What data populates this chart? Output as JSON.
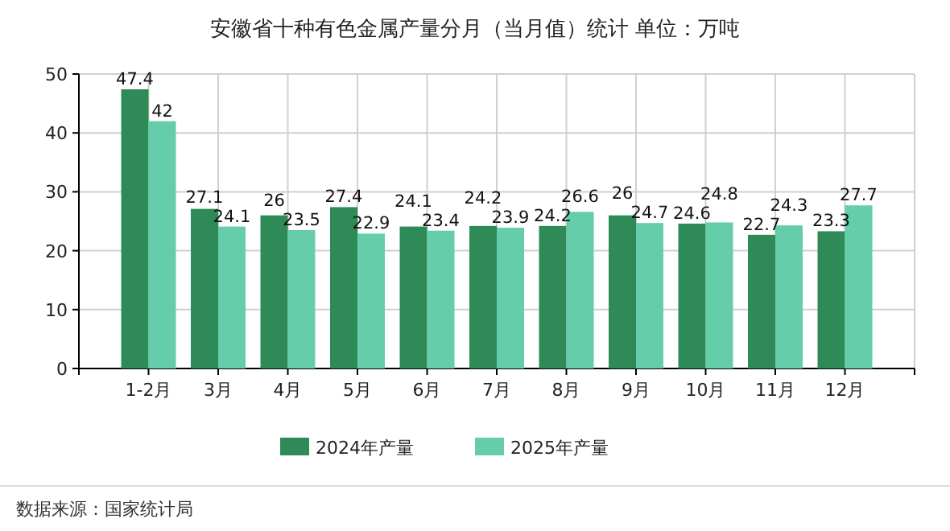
{
  "chart_data": {
    "type": "bar",
    "title": "安徽省十种有色金属产量分月（当月值）统计 单位：万吨",
    "categories": [
      "1-2月",
      "3月",
      "4月",
      "5月",
      "6月",
      "7月",
      "8月",
      "9月",
      "10月",
      "11月",
      "12月"
    ],
    "series": [
      {
        "name": "2024年产量",
        "color": "#2e8b57",
        "values": [
          47.4,
          27.1,
          26,
          27.4,
          24.1,
          24.2,
          24.2,
          26,
          24.6,
          22.7,
          23.3
        ]
      },
      {
        "name": "2025年产量",
        "color": "#66cdaa",
        "values": [
          42,
          24.1,
          23.5,
          22.9,
          23.4,
          23.9,
          26.6,
          24.7,
          24.8,
          24.3,
          27.7
        ]
      }
    ],
    "ylim": [
      0,
      50
    ],
    "yticks": [
      0,
      10,
      20,
      30,
      40,
      50
    ],
    "grid": true,
    "legend": "bottom",
    "data_labels": true,
    "annotations": [
      "数据来源：国家统计局"
    ]
  }
}
